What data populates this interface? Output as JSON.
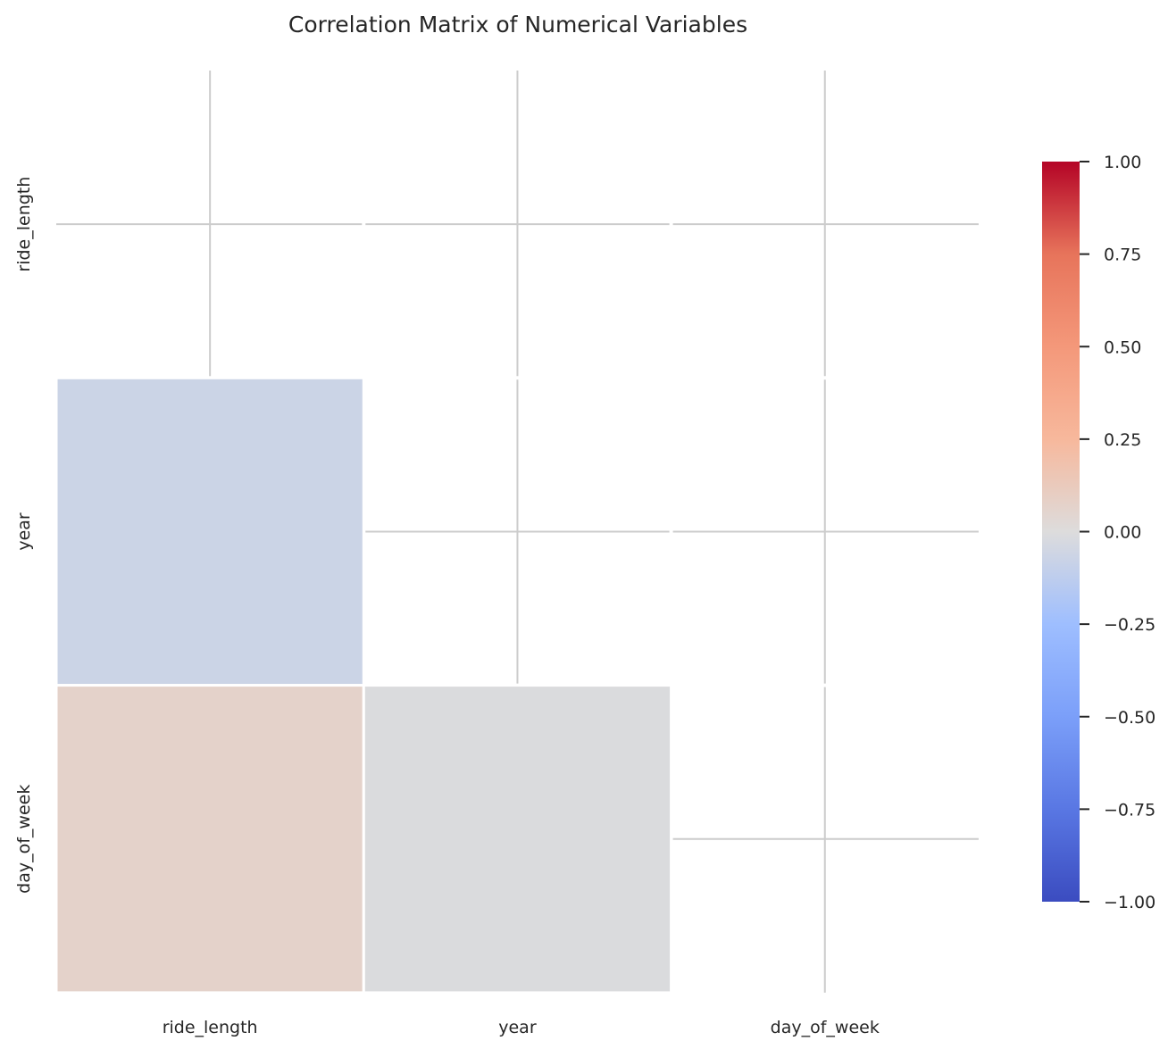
{
  "chart_data": {
    "type": "heatmap",
    "title": "Correlation Matrix of Numerical Variables",
    "variables": [
      "ride_length",
      "year",
      "day_of_week"
    ],
    "mask": "upper triangle including diagonal",
    "cells": [
      {
        "row": "year",
        "col": "ride_length",
        "value": -0.07
      },
      {
        "row": "day_of_week",
        "col": "ride_length",
        "value": 0.07
      },
      {
        "row": "day_of_week",
        "col": "year",
        "value": -0.01
      }
    ],
    "colormap": "coolwarm",
    "vmin": -1.0,
    "vmax": 1.0,
    "colorbar_ticks": [
      "1.00",
      "0.75",
      "0.50",
      "0.25",
      "0.00",
      "−0.25",
      "−0.50",
      "−0.75",
      "−1.00"
    ],
    "colorbar_tick_values": [
      1.0,
      0.75,
      0.5,
      0.25,
      0.0,
      -0.25,
      -0.5,
      -0.75,
      -1.0
    ],
    "grid": true,
    "colors": {
      "grid": "#cccccc",
      "text": "#262626",
      "cell_border": "#ffffff"
    }
  }
}
